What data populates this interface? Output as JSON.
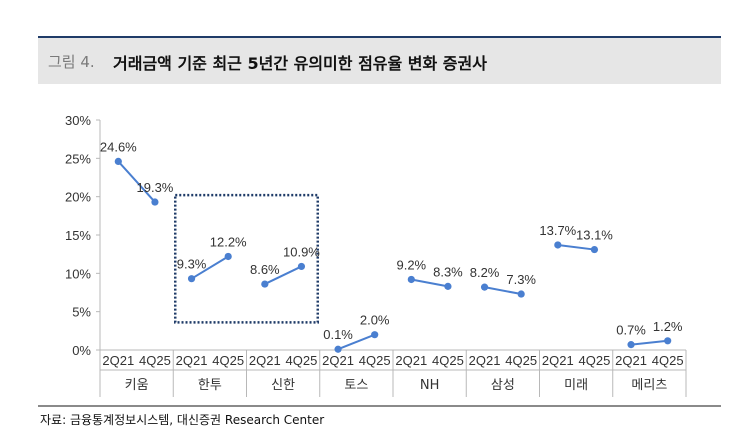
{
  "header": {
    "fig_num": "그림 4.",
    "title": "거래금액 기준 최근 5년간 유의미한 점유율 변화 증권사"
  },
  "source": "자료: 금융통계정보시스템, 대신증권 Research Center",
  "chart_data": {
    "type": "line",
    "title": "거래금액 기준 최근 5년간 유의미한 점유율 변화 증권사",
    "xlabel": "",
    "ylabel": "",
    "ylim": [
      0,
      30
    ],
    "yticks": [
      "0%",
      "5%",
      "10%",
      "15%",
      "20%",
      "25%",
      "30%"
    ],
    "subcategories": [
      "2Q21",
      "4Q25"
    ],
    "groups": [
      {
        "name": "키움",
        "values": [
          24.6,
          19.3
        ],
        "labels": [
          "24.6%",
          "19.3%"
        ]
      },
      {
        "name": "한투",
        "values": [
          9.3,
          12.2
        ],
        "labels": [
          "9.3%",
          "12.2%"
        ]
      },
      {
        "name": "신한",
        "values": [
          8.6,
          10.9
        ],
        "labels": [
          "8.6%",
          "10.9%"
        ]
      },
      {
        "name": "토스",
        "values": [
          0.1,
          2.0
        ],
        "labels": [
          "0.1%",
          "2.0%"
        ]
      },
      {
        "name": "NH",
        "values": [
          9.2,
          8.3
        ],
        "labels": [
          "9.2%",
          "8.3%"
        ]
      },
      {
        "name": "삼성",
        "values": [
          8.2,
          7.3
        ],
        "labels": [
          "8.2%",
          "7.3%"
        ]
      },
      {
        "name": "미래",
        "values": [
          13.7,
          13.1
        ],
        "labels": [
          "13.7%",
          "13.1%"
        ]
      },
      {
        "name": "메리츠",
        "values": [
          0.7,
          1.2
        ],
        "labels": [
          "0.7%",
          "1.2%"
        ]
      }
    ],
    "highlight_groups": [
      "한투",
      "신한"
    ],
    "grid": false,
    "colors": {
      "series": "#4a7fd0",
      "highlight_box": "#1f3b68"
    }
  }
}
